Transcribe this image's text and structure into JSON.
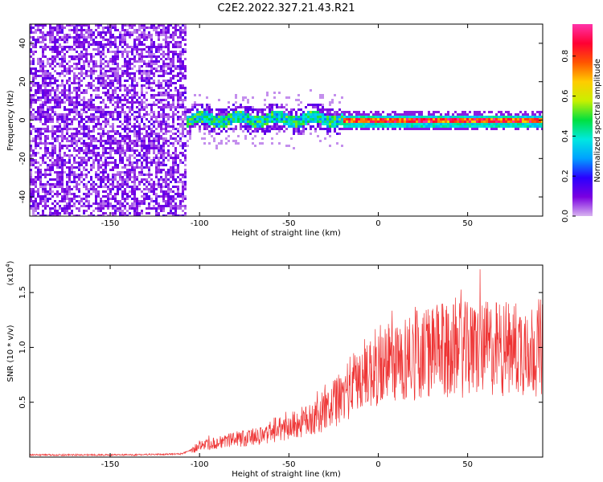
{
  "title": "C2E2.2022.327.21.43.R21",
  "colors": {
    "series_line": "#ee3333",
    "colorbar_stops": [
      "#d8b4f0",
      "#7a00e0",
      "#2a00ff",
      "#00a0ff",
      "#00e8e0",
      "#00e040",
      "#c8f000",
      "#ffcc00",
      "#ff5500",
      "#ff0033",
      "#ff33aa"
    ]
  },
  "chart_data": [
    {
      "type": "heatmap",
      "title": "C2E2.2022.327.21.43.R21",
      "xlabel": "Height of straight line (km)",
      "ylabel": "Frequency (Hz)",
      "xlim": [
        -195,
        92
      ],
      "ylim": [
        -50,
        50
      ],
      "x_ticks": [
        -150,
        -100,
        -50,
        0,
        50
      ],
      "y_ticks": [
        -40,
        -20,
        0,
        20,
        40
      ],
      "x_tick_labels": [
        "-150",
        "-100",
        "-50",
        "0",
        "50"
      ],
      "y_tick_labels": [
        "-40",
        "-20",
        "0",
        "20",
        "40"
      ],
      "colorbar": {
        "label": "Normalized spectral amplitude",
        "range": [
          0,
          0.96
        ],
        "ticks": [
          0.0,
          0.2,
          0.4,
          0.6,
          0.8
        ],
        "tick_labels": [
          "0.0",
          "0.2",
          "0.4",
          "0.6",
          "0.8"
        ]
      },
      "regions": [
        {
          "x_range": [
            -195,
            -108
          ],
          "freq_range": [
            -50,
            50
          ],
          "amplitude": 0.05,
          "description": "broadband noise"
        },
        {
          "x_range": [
            -108,
            -20
          ],
          "center_freq": 1,
          "halfwidth_hz": 3,
          "peak_amplitude": 0.5
        },
        {
          "x_range": [
            -20,
            92
          ],
          "center_freq": 0,
          "halfwidth_hz": 2.5,
          "peak_amplitude": 0.92
        }
      ]
    },
    {
      "type": "line",
      "xlabel": "Height of straight line (km)",
      "ylabel": "SNR (10 * v/v)",
      "y_multiplier": "(x10",
      "y_multiplier_exp": "4",
      "y_multiplier_close": ")",
      "xlim": [
        -195,
        92
      ],
      "ylim": [
        0,
        17500
      ],
      "x_ticks": [
        -150,
        -100,
        -50,
        0,
        50
      ],
      "y_ticks": [
        5000,
        10000,
        15000
      ],
      "x_tick_labels": [
        "-150",
        "-100",
        "-50",
        "0",
        "50"
      ],
      "y_tick_labels": [
        "0.5",
        "1.0",
        "1.5"
      ],
      "series": [
        {
          "x": [
            -195,
            -180,
            -160,
            -140,
            -120,
            -110,
            -105,
            -100,
            -90,
            -80,
            -70,
            -60,
            -50,
            -40,
            -30,
            -20,
            -15,
            -10,
            -5,
            0,
            10,
            20,
            30,
            40,
            50,
            60,
            70,
            80,
            92
          ],
          "values": [
            200,
            200,
            200,
            200,
            250,
            300,
            600,
            1000,
            1300,
            1600,
            1800,
            2100,
            2800,
            3300,
            4200,
            5500,
            6500,
            7200,
            7800,
            8200,
            8700,
            9300,
            9600,
            9700,
            9800,
            9900,
            9900,
            10000,
            10000
          ]
        }
      ]
    }
  ]
}
